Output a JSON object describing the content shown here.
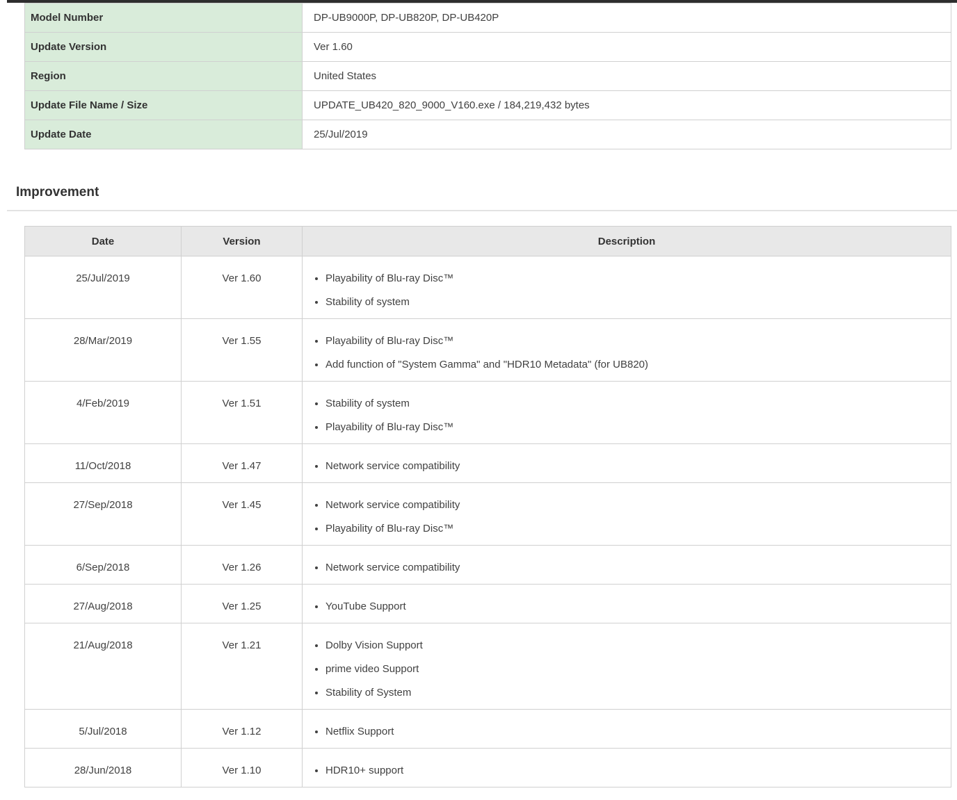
{
  "info_table": {
    "rows": [
      {
        "label": "Model Number",
        "value": "DP-UB9000P, DP-UB820P, DP-UB420P"
      },
      {
        "label": "Update Version",
        "value": "Ver 1.60"
      },
      {
        "label": "Region",
        "value": "United States"
      },
      {
        "label": "Update File Name / Size",
        "value": "UPDATE_UB420_820_9000_V160.exe / 184,219,432 bytes"
      },
      {
        "label": "Update Date",
        "value": "25/Jul/2019"
      }
    ]
  },
  "improvement": {
    "heading": "Improvement",
    "table": {
      "headers": [
        "Date",
        "Version",
        "Description"
      ],
      "rows": [
        {
          "date": "25/Jul/2019",
          "version": "Ver 1.60",
          "items": [
            "Playability of Blu-ray Disc™",
            "Stability of system"
          ]
        },
        {
          "date": "28/Mar/2019",
          "version": "Ver 1.55",
          "items": [
            "Playability of Blu-ray Disc™",
            "Add function of \"System Gamma\" and \"HDR10 Metadata\" (for UB820)"
          ]
        },
        {
          "date": "4/Feb/2019",
          "version": "Ver 1.51",
          "items": [
            "Stability of system",
            "Playability of Blu-ray Disc™"
          ]
        },
        {
          "date": "11/Oct/2018",
          "version": "Ver 1.47",
          "items": [
            "Network service compatibility"
          ]
        },
        {
          "date": "27/Sep/2018",
          "version": "Ver 1.45",
          "items": [
            "Network service compatibility",
            "Playability of Blu-ray Disc™"
          ]
        },
        {
          "date": "6/Sep/2018",
          "version": "Ver 1.26",
          "items": [
            "Network service compatibility"
          ]
        },
        {
          "date": "27/Aug/2018",
          "version": "Ver 1.25",
          "items": [
            "YouTube Support"
          ]
        },
        {
          "date": "21/Aug/2018",
          "version": "Ver 1.21",
          "items": [
            "Dolby Vision Support",
            "prime video Support",
            "Stability of System"
          ]
        },
        {
          "date": "5/Jul/2018",
          "version": "Ver 1.12",
          "items": [
            "Netflix Support"
          ]
        },
        {
          "date": "28/Jun/2018",
          "version": "Ver 1.10",
          "items": [
            "HDR10+ support"
          ]
        }
      ]
    }
  },
  "colors": {
    "accent_green": "#d9ecda",
    "header_gray": "#e8e8e8",
    "border": "#d0d0d0",
    "top_bar": "#2e2e2e"
  }
}
